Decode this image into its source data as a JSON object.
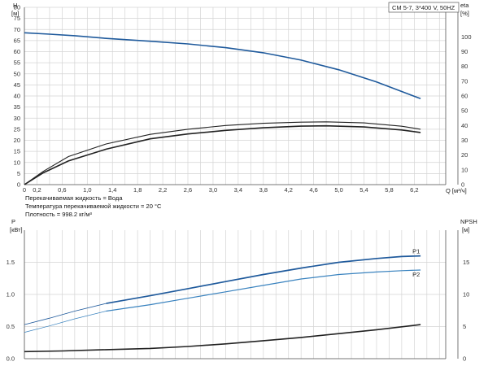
{
  "model_label": "CM 5-7, 3*400 V, 50HZ",
  "notes": [
    "Перекачиваемая жидкость = Вода",
    "Температура перекачиваемой жидкости = 20 °C",
    "Плотность = 998.2 кг/м³"
  ],
  "colors": {
    "head": "#1f5a9c",
    "eta": "#222222",
    "p1": "#1f5a9c",
    "p2": "#3a83bf",
    "npsh": "#222222"
  },
  "chart_data": [
    {
      "type": "line",
      "title": "",
      "xlabel": "Q [м³/ч]",
      "ylabel": "H [м]",
      "y2label": "eta [%]",
      "xlim": [
        0,
        6.7
      ],
      "ylim": [
        0,
        80
      ],
      "y2lim": [
        0,
        120
      ],
      "xticks": [
        "0",
        "0,2",
        "0,6",
        "1,0",
        "1,4",
        "1,8",
        "2,2",
        "2,6",
        "3,0",
        "3,4",
        "3,8",
        "4,2",
        "4,6",
        "5,0",
        "5,4",
        "5,8",
        "6,2"
      ],
      "yticks": [
        "0",
        "5",
        "10",
        "15",
        "20",
        "25",
        "30",
        "35",
        "40",
        "45",
        "50",
        "55",
        "60",
        "65",
        "70",
        "75",
        "80"
      ],
      "y2ticks": [
        "0",
        "10",
        "20",
        "30",
        "40",
        "50",
        "60",
        "70",
        "80",
        "90",
        "100"
      ],
      "grid": true,
      "series": [
        {
          "key": "head",
          "axis": "y",
          "x": [
            0,
            0.4,
            0.8,
            1.3,
            2.0,
            2.6,
            3.2,
            3.8,
            4.4,
            5.0,
            5.6,
            6.0,
            6.3
          ],
          "y": [
            68.5,
            67.9,
            67.2,
            66.0,
            64.7,
            63.5,
            61.8,
            59.5,
            56.2,
            51.8,
            46.3,
            42.0,
            38.8
          ]
        },
        {
          "key": "eta",
          "axis": "y2",
          "x": [
            0,
            0.3,
            0.7,
            1.3,
            2.0,
            2.6,
            3.2,
            3.8,
            4.4,
            4.8,
            5.4,
            6.0,
            6.3
          ],
          "y": [
            0,
            8.0,
            16.0,
            24.0,
            31.0,
            34.3,
            36.7,
            38.5,
            39.6,
            39.8,
            39.0,
            37.0,
            35.3
          ]
        },
        {
          "key": "eta2",
          "axis": "y2",
          "x": [
            0,
            0.3,
            0.7,
            1.3,
            2.0,
            2.6,
            3.2,
            3.8,
            4.4,
            4.8,
            5.4,
            6.0,
            6.3
          ],
          "y": [
            0,
            9.0,
            19.0,
            27.5,
            34.0,
            37.5,
            40.0,
            41.5,
            42.3,
            42.5,
            41.8,
            39.5,
            37.5
          ]
        }
      ]
    },
    {
      "type": "line",
      "title": "",
      "xlabel": "",
      "ylabel": "P [кВт]",
      "y2label": "NPSH [м]",
      "xlim": [
        0,
        6.7
      ],
      "ylim": [
        0,
        2.0
      ],
      "y2lim": [
        0,
        20
      ],
      "yticks": [
        "0.0",
        "0.5",
        "1.0",
        "1.5"
      ],
      "y2ticks": [
        "0",
        "5",
        "10",
        "15"
      ],
      "grid": true,
      "series": [
        {
          "key": "p1",
          "name": "P1",
          "axis": "y",
          "x": [
            1.3,
            2.0,
            2.6,
            3.2,
            3.8,
            4.4,
            5.0,
            5.6,
            6.0,
            6.3
          ],
          "y": [
            0.86,
            0.98,
            1.09,
            1.2,
            1.31,
            1.41,
            1.5,
            1.56,
            1.59,
            1.6
          ]
        },
        {
          "key": "p1_ext",
          "axis": "y",
          "x": [
            0,
            0.4,
            0.8,
            1.3
          ],
          "y": [
            0.53,
            0.63,
            0.74,
            0.86
          ]
        },
        {
          "key": "p2",
          "name": "P2",
          "axis": "y",
          "x": [
            1.3,
            2.0,
            2.6,
            3.2,
            3.8,
            4.4,
            5.0,
            5.6,
            6.0,
            6.3
          ],
          "y": [
            0.74,
            0.84,
            0.94,
            1.04,
            1.14,
            1.24,
            1.31,
            1.35,
            1.37,
            1.38
          ]
        },
        {
          "key": "p2_ext",
          "axis": "y",
          "x": [
            0,
            0.4,
            0.8,
            1.3
          ],
          "y": [
            0.41,
            0.51,
            0.62,
            0.74
          ]
        },
        {
          "key": "npsh",
          "axis": "y2",
          "x": [
            0,
            0.6,
            1.3,
            2.0,
            2.6,
            3.2,
            3.8,
            4.4,
            5.0,
            5.6,
            6.3
          ],
          "y": [
            1.1,
            1.2,
            1.4,
            1.6,
            1.9,
            2.3,
            2.8,
            3.3,
            3.9,
            4.5,
            5.3
          ]
        }
      ]
    }
  ]
}
